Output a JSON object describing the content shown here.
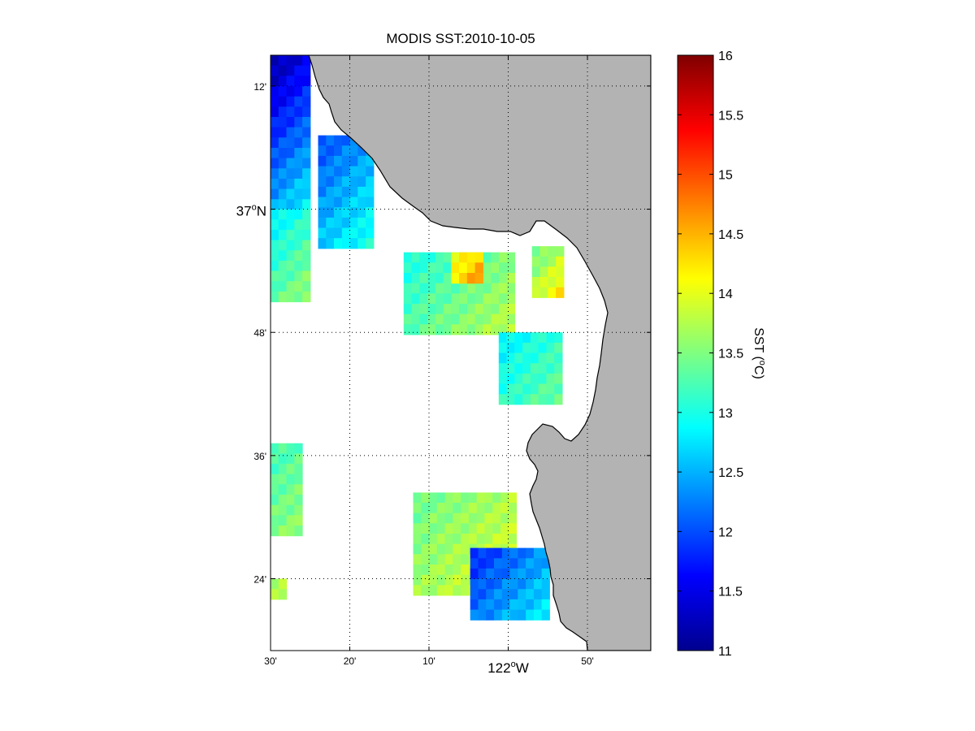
{
  "title": "MODIS SST:2010-10-05",
  "map": {
    "lon_range": [
      -122.5,
      -121.7
    ],
    "lat_range": [
      37.25,
      36.2833
    ],
    "x_ticks": [
      {
        "lon": -122.5,
        "label": "30'"
      },
      {
        "lon": -122.3333,
        "label": "20'"
      },
      {
        "lon": -122.1667,
        "label": "10'"
      },
      {
        "lon": -122.0,
        "label": "122",
        "sup": "o",
        "suffix": "W"
      },
      {
        "lon": -121.8333,
        "label": "50'"
      }
    ],
    "y_ticks": [
      {
        "lat": 37.2,
        "label": "12'"
      },
      {
        "lat": 37.0,
        "label": "37",
        "sup": "o",
        "suffix": "N"
      },
      {
        "lat": 36.8,
        "label": "48'"
      },
      {
        "lat": 36.6,
        "label": "36'"
      },
      {
        "lat": 36.4,
        "label": "24'"
      }
    ],
    "land_color": "#b3b3b3",
    "ocean_color": "#ffffff",
    "grid": true
  },
  "colorbar": {
    "min": 11,
    "max": 16,
    "ticks": [
      "11",
      "11.5",
      "12",
      "12.5",
      "13",
      "13.5",
      "14",
      "14.5",
      "15",
      "15.5",
      "16"
    ],
    "label": "SST (",
    "label_sup": "o",
    "label_end": "C)",
    "colormap": "jet"
  },
  "chart_data": {
    "type": "heatmap",
    "title": "MODIS SST:2010-10-05",
    "variable": "SST (°C)",
    "value_range": [
      11,
      16
    ],
    "cell_size_deg": 0.0167,
    "patches": [
      {
        "name": "north-coast-cold",
        "lon": [
          -122.5,
          -122.42
        ],
        "lat": [
          37.0,
          37.25
        ],
        "sst_start": 11.2,
        "sst_end": 12.8
      },
      {
        "name": "north-coast-strip",
        "lon": [
          -122.4,
          -122.28
        ],
        "lat": [
          36.93,
          37.12
        ],
        "sst_start": 12.0,
        "sst_end": 13.0
      },
      {
        "name": "west-edge-warm",
        "lon": [
          -122.5,
          -122.42
        ],
        "lat": [
          36.85,
          37.0
        ],
        "sst_start": 12.8,
        "sst_end": 13.6
      },
      {
        "name": "bay-mouth-central",
        "lon": [
          -122.22,
          -121.98
        ],
        "lat": [
          36.8,
          36.93
        ],
        "sst_start": 13.0,
        "sst_end": 13.8
      },
      {
        "name": "bay-warm-spot",
        "lon": [
          -122.12,
          -122.05
        ],
        "lat": [
          36.88,
          36.93
        ],
        "sst_start": 14.0,
        "sst_end": 14.6
      },
      {
        "name": "bay-northeast",
        "lon": [
          -121.95,
          -121.88
        ],
        "lat": [
          36.86,
          36.94
        ],
        "sst_start": 13.4,
        "sst_end": 14.2
      },
      {
        "name": "bay-southeast",
        "lon": [
          -122.02,
          -121.88
        ],
        "lat": [
          36.68,
          36.8
        ],
        "sst_start": 12.8,
        "sst_end": 13.4
      },
      {
        "name": "west-edge-south",
        "lon": [
          -122.5,
          -122.44
        ],
        "lat": [
          36.47,
          36.62
        ],
        "sst_start": 13.2,
        "sst_end": 13.6
      },
      {
        "name": "south-warm",
        "lon": [
          -122.2,
          -121.98
        ],
        "lat": [
          36.37,
          36.54
        ],
        "sst_start": 13.4,
        "sst_end": 14.0
      },
      {
        "name": "south-coast-cold",
        "lon": [
          -122.08,
          -121.92
        ],
        "lat": [
          36.33,
          36.45
        ],
        "sst_start": 11.8,
        "sst_end": 12.8
      },
      {
        "name": "south-west-tiny",
        "lon": [
          -122.5,
          -122.47
        ],
        "lat": [
          36.37,
          36.4
        ],
        "sst_start": 13.6,
        "sst_end": 13.8
      }
    ]
  }
}
